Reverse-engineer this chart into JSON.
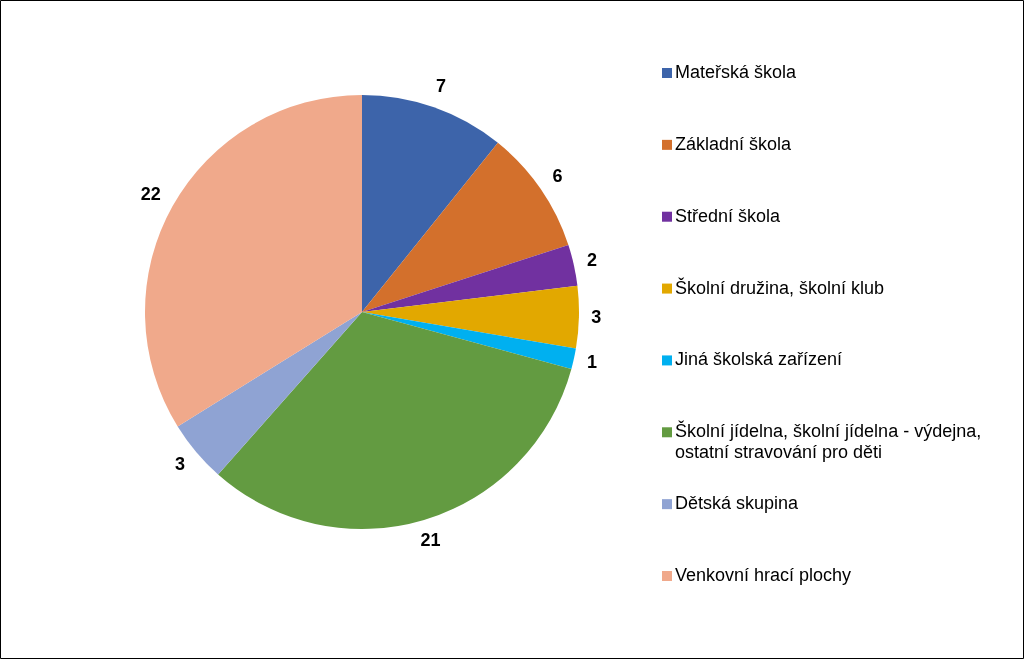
{
  "chart_data": {
    "type": "pie",
    "categories": [
      "Mateřská škola",
      "Základní škola",
      "Střední škola",
      "Školní družina, školní klub",
      "Jiná školská zařízení",
      "Školní jídelna, školní jídelna - výdejna, ostatní stravování pro děti",
      "Dětská skupina",
      "Venkovní hrací plochy"
    ],
    "values": [
      7,
      6,
      2,
      3,
      1,
      21,
      3,
      22
    ],
    "colors": [
      "#3d64aa",
      "#d3702c",
      "#7131a0",
      "#e2a800",
      "#00b0f0",
      "#639b41",
      "#8fa3d3",
      "#f0a98b"
    ],
    "data_labels": true,
    "legend": "right"
  }
}
